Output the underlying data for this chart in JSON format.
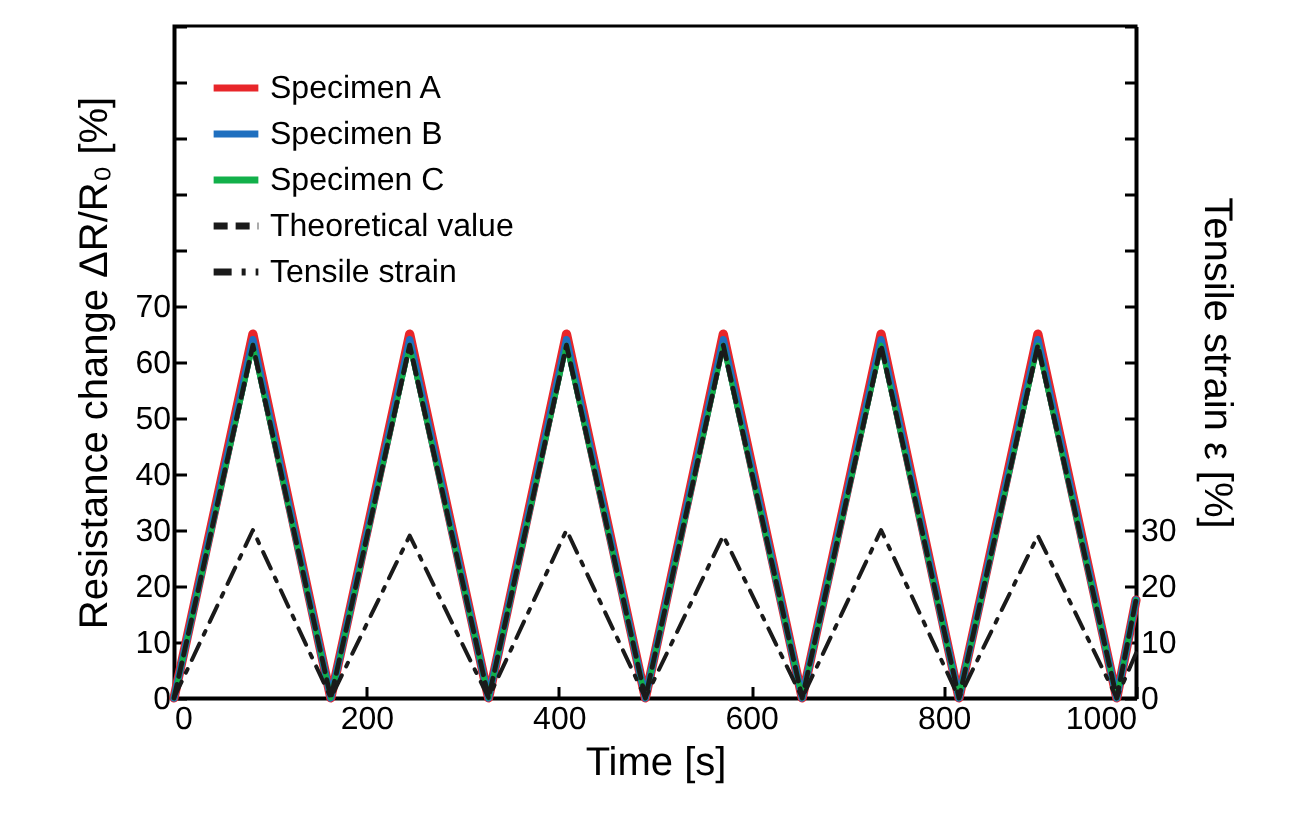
{
  "chart_data": {
    "type": "line",
    "xlabel": "Time [s]",
    "ylabel": "Resistance change ΔR/R₀ [%]",
    "y2label": "Tensile strain ε [%]",
    "x": [
      0,
      82,
      163,
      245,
      327,
      408,
      490,
      571,
      653,
      735,
      816,
      898,
      980,
      1000
    ],
    "series": [
      {
        "name": "Specimen A",
        "color": "#e8262a",
        "line_style": "solid",
        "values": [
          0,
          65,
          0,
          65,
          0,
          65,
          0,
          65,
          0,
          65,
          0,
          65,
          0,
          17.5
        ]
      },
      {
        "name": "Specimen B",
        "color": "#1f6fbf",
        "line_style": "solid",
        "values": [
          0,
          64,
          0,
          64,
          0,
          64,
          0,
          64,
          0,
          64,
          0,
          64,
          0,
          17.5
        ]
      },
      {
        "name": "Specimen C",
        "color": "#12b04a",
        "line_style": "solid",
        "values": [
          0,
          63,
          0,
          63,
          0,
          63,
          0,
          63,
          0,
          63,
          0,
          63,
          0,
          17.5
        ]
      },
      {
        "name": "Theoretical value",
        "color": "#1a1a1a",
        "line_style": "dashed",
        "values": [
          0,
          63,
          0,
          63,
          0,
          63,
          0,
          63,
          0,
          63,
          0,
          63,
          0,
          17.5
        ]
      },
      {
        "name": "Tensile strain",
        "color": "#1a1a1a",
        "line_style": "dashdot",
        "axis": "y2",
        "values": [
          0,
          30,
          0,
          29,
          0,
          30,
          0,
          29,
          0,
          30,
          0,
          29,
          0,
          8
        ]
      }
    ],
    "xlim": [
      0,
      1000
    ],
    "xticks": [
      0,
      200,
      400,
      600,
      800,
      1000
    ],
    "ylim": [
      0,
      120
    ],
    "yticks": [
      0,
      10,
      20,
      30,
      40,
      50,
      60,
      70,
      {
        "value": 80,
        "label": null
      },
      {
        "value": 90,
        "label": null
      },
      {
        "value": 100,
        "label": null
      },
      {
        "value": 110,
        "label": null
      },
      {
        "value": 120,
        "label": null
      }
    ],
    "y2lim": [
      0,
      120
    ],
    "y2ticks": [
      0,
      10,
      20,
      30,
      {
        "value": 40,
        "label": null
      },
      {
        "value": 50,
        "label": null
      },
      {
        "value": 60,
        "label": null
      },
      {
        "value": 70,
        "label": null
      },
      {
        "value": 80,
        "label": null
      },
      {
        "value": 90,
        "label": null
      },
      {
        "value": 100,
        "label": null
      },
      {
        "value": 110,
        "label": null
      },
      {
        "value": 120,
        "label": null
      }
    ],
    "grid": false,
    "legend": "top left"
  }
}
